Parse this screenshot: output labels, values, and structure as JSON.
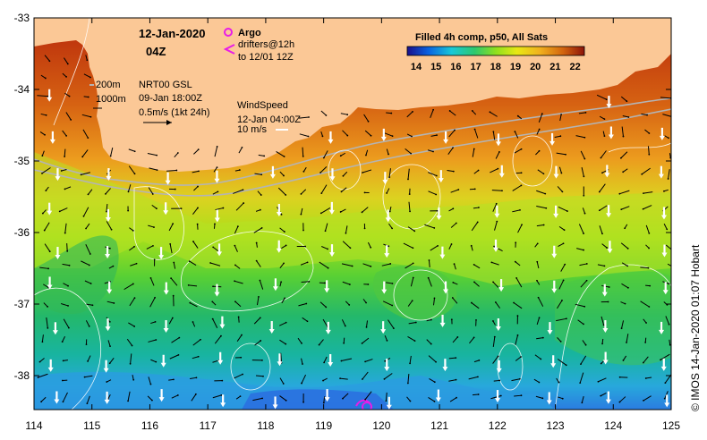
{
  "map": {
    "date": "12-Jan-2020",
    "time": "04Z",
    "legend_argo": "Argo",
    "legend_drifters_1": "drifters@12h",
    "legend_drifters_2": "to 12/01 12Z",
    "contour_200": "200m",
    "contour_1000": "1000m",
    "nrt_label": "NRT00 GSL",
    "nrt_date": "09-Jan 18:00Z",
    "current_scale": "0.5m/s (1kt 24h)",
    "wind_title": "WindSpeed",
    "wind_date": "12-Jan 04:00Z",
    "wind_scale": "10 m/s",
    "colorbar_title": "Filled 4h comp, p50, All Sats",
    "colorbar_ticks": [
      "14",
      "15",
      "16",
      "17",
      "18",
      "19",
      "20",
      "21",
      "22"
    ],
    "credit": "© IMOS 14-Jan-2020 01:07 Hobart",
    "x_ticks": [
      "114",
      "115",
      "116",
      "117",
      "118",
      "119",
      "120",
      "121",
      "122",
      "123",
      "124",
      "125"
    ],
    "y_ticks": [
      "-33",
      "-34",
      "-35",
      "-36",
      "-37",
      "-38"
    ],
    "colors": {
      "land": "#fbc896",
      "argo": "#e81ce8",
      "contour": "#b4b4b4",
      "sst_scale": [
        "#1a0f8a",
        "#0a62e0",
        "#18c8d8",
        "#2ec86e",
        "#8ee01e",
        "#e8e814",
        "#f0b01e",
        "#d2640e",
        "#8c140a"
      ]
    }
  }
}
